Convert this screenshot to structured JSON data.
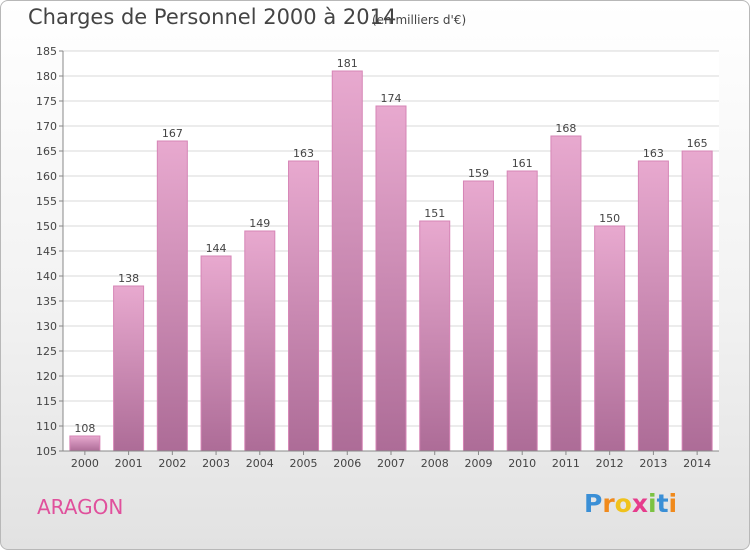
{
  "title": "Charges de Personnel 2000 à 2014",
  "subtitle": "(en milliers d'€)",
  "location": "ARAGON",
  "logo": {
    "letters": [
      "P",
      "r",
      "o",
      "x",
      "i",
      "t",
      "i"
    ],
    "colors": [
      "#3a8fd6",
      "#f08a1c",
      "#f0c21c",
      "#e63c8c",
      "#7cc242",
      "#3a8fd6",
      "#f08a1c"
    ]
  },
  "colors": {
    "bar_top": "#e8a9cf",
    "bar_bottom": "#ad6c97",
    "bar_stroke": "#d685b6",
    "grid": "#d8d8d8",
    "text": "#444444"
  },
  "chart_data": {
    "type": "bar",
    "categories": [
      "2000",
      "2001",
      "2002",
      "2003",
      "2004",
      "2005",
      "2006",
      "2007",
      "2008",
      "2009",
      "2010",
      "2011",
      "2012",
      "2013",
      "2014"
    ],
    "values": [
      108,
      138,
      167,
      144,
      149,
      163,
      181,
      174,
      151,
      159,
      161,
      168,
      150,
      163,
      165
    ],
    "ylim": [
      105,
      185
    ],
    "yticks": [
      105,
      110,
      115,
      120,
      125,
      130,
      135,
      140,
      145,
      150,
      155,
      160,
      165,
      170,
      175,
      180,
      185
    ],
    "grid": true,
    "data_labels": true
  }
}
